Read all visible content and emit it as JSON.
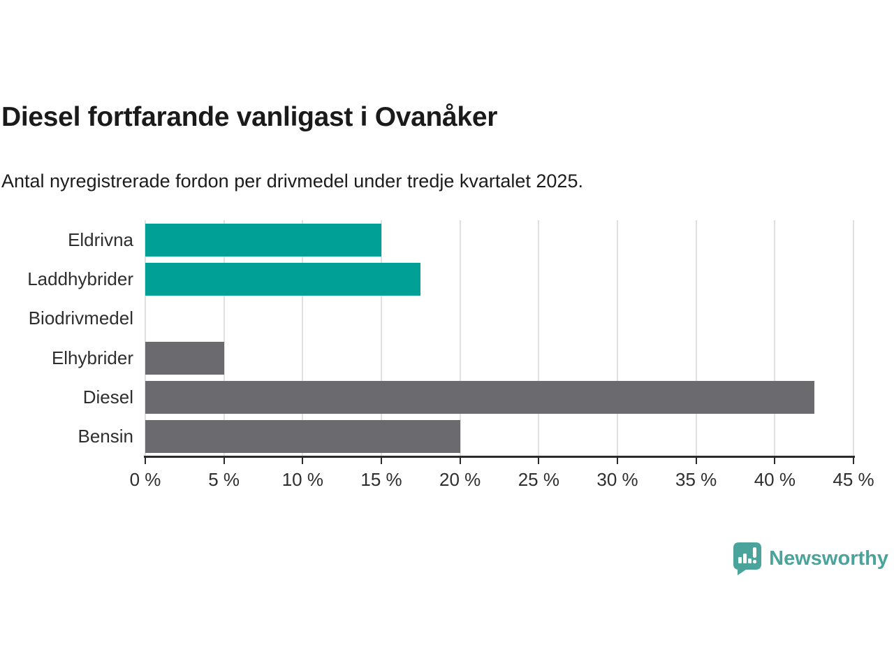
{
  "header": {
    "title": "Diesel fortfarande vanligast i Ovanåker",
    "subtitle": "Antal nyregistrerade fordon per drivmedel under tredje kvartalet 2025."
  },
  "chart_data": {
    "type": "bar",
    "orientation": "horizontal",
    "title": "Diesel fortfarande vanligast i Ovanåker",
    "subtitle": "Antal nyregistrerade fordon per drivmedel under tredje kvartalet 2025.",
    "categories": [
      "Eldrivna",
      "Laddhybrider",
      "Biodrivmedel",
      "Elhybrider",
      "Diesel",
      "Bensin"
    ],
    "values": [
      15,
      17.5,
      0,
      5,
      42.5,
      20
    ],
    "unit": "%",
    "bar_colors": [
      "#00a096",
      "#00a096",
      "#6b6b6f",
      "#6b6b6f",
      "#6b6b6f",
      "#6b6b6f"
    ],
    "xlim": [
      0,
      45
    ],
    "x_tick_step": 5,
    "x_tick_labels": [
      "0 %",
      "5 %",
      "10 %",
      "15 %",
      "20 %",
      "25 %",
      "30 %",
      "35 %",
      "40 %",
      "45 %"
    ],
    "grid": true,
    "legend": "none"
  },
  "colors": {
    "electric_accent": "#00a096",
    "fossil_gray": "#6b6b6f",
    "gridline": "#e0e0e0",
    "axis": "#2b2b2b",
    "brand_teal": "#4aa49b"
  },
  "footer": {
    "brand_name": "Newsworthy",
    "brand_icon": "newsworthy-speech-bubble-chart-icon"
  }
}
